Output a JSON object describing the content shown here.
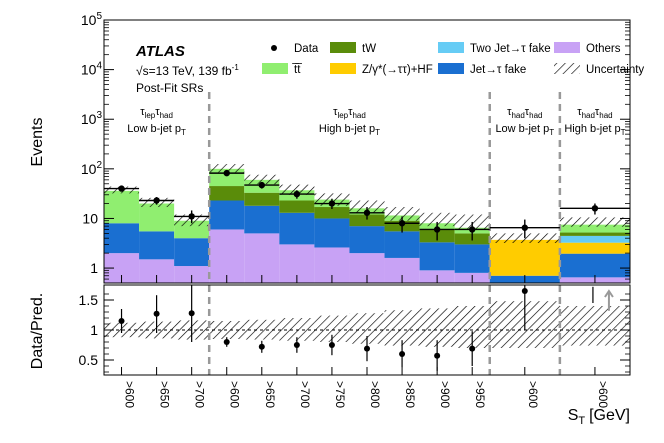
{
  "chart_data": {
    "type": "bar",
    "stacked": true,
    "log_y": true,
    "ylabel": "Events",
    "ratio_ylabel": "Data/Pred.",
    "xlabel": "S",
    "xlabel_sub": "T",
    "xlabel_unit": "[GeV]",
    "ylim": [
      0.5,
      100000
    ],
    "ratio_ylim": [
      0.25,
      1.75
    ],
    "y_ticks": [
      {
        "base": "1",
        "exp": ""
      },
      {
        "base": "10",
        "exp": ""
      },
      {
        "base": "10",
        "exp": "2"
      },
      {
        "base": "10",
        "exp": "3"
      },
      {
        "base": "10",
        "exp": "4"
      },
      {
        "base": "10",
        "exp": "5"
      }
    ],
    "y_tick_values": [
      1,
      10,
      100,
      1000,
      10000,
      100000
    ],
    "ratio_ticks": [
      {
        "value": 0.5,
        "label": "0.5"
      },
      {
        "value": 1.0,
        "label": "1"
      },
      {
        "value": 1.5,
        "label": "1.5"
      }
    ],
    "categories": [
      ">600",
      ">650",
      ">700",
      ">600",
      ">650",
      ">700",
      ">750",
      ">800",
      ">850",
      ">900",
      ">950",
      ">600",
      ">600"
    ],
    "bin_widths": [
      1,
      1,
      1,
      1,
      1,
      1,
      1,
      1,
      1,
      1,
      1,
      2,
      2
    ],
    "series": [
      {
        "name": "Others",
        "color": "#c8a2f5",
        "values": [
          2.0,
          1.5,
          1.1,
          6.0,
          5.0,
          3.0,
          2.6,
          2.0,
          1.6,
          0.9,
          0.8,
          0.0,
          0.65
        ]
      },
      {
        "name": "Jet→τ fake",
        "color": "#1a6fd1",
        "values": [
          6.0,
          4.0,
          2.9,
          17.0,
          13.0,
          10.0,
          7.4,
          5.0,
          3.9,
          2.4,
          2.2,
          0.7,
          1.3
        ]
      },
      {
        "name": "Z/γ*(→ττ)+HF",
        "color": "#ffcc00",
        "values": [
          0.0,
          0.0,
          0.0,
          0.0,
          0.0,
          0.0,
          0.0,
          0.0,
          0.0,
          0.0,
          0.0,
          3.0,
          1.3
        ]
      },
      {
        "name": "Two Jet→τ fake",
        "color": "#66ccf5",
        "values": [
          0.0,
          0.0,
          0.0,
          0.0,
          0.0,
          0.0,
          0.0,
          0.0,
          0.0,
          0.0,
          0.0,
          0.0,
          1.2
        ]
      },
      {
        "name": "tW",
        "color": "#5a8c0a",
        "values": [
          0.0,
          0.0,
          0.0,
          22.0,
          15.0,
          10.0,
          7.0,
          5.0,
          3.5,
          2.7,
          2.0,
          0.0,
          0.75
        ]
      },
      {
        "name": "t̅t̅",
        "color": "#90ee70",
        "values": [
          28.0,
          14.5,
          5.0,
          55.0,
          27.0,
          14.0,
          7.0,
          4.0,
          2.5,
          2.0,
          1.5,
          0.0,
          2.3
        ]
      }
    ],
    "uncertainty_range": [
      [
        32,
        44
      ],
      [
        17,
        26
      ],
      [
        7,
        12
      ],
      [
        85,
        125
      ],
      [
        49,
        76
      ],
      [
        30,
        48
      ],
      [
        18,
        32
      ],
      [
        13,
        23
      ],
      [
        9,
        17
      ],
      [
        7,
        13
      ],
      [
        6,
        12
      ],
      [
        3.2,
        5.0
      ],
      [
        6.8,
        10.5
      ]
    ],
    "data": [
      {
        "value": 40,
        "err": [
          36,
          44
        ]
      },
      {
        "value": 23,
        "err": [
          19,
          27
        ]
      },
      {
        "value": 11,
        "err": [
          8,
          14.5
        ]
      },
      {
        "value": 82,
        "err": [
          72,
          92
        ]
      },
      {
        "value": 47,
        "err": [
          40,
          54
        ]
      },
      {
        "value": 31,
        "err": [
          25,
          37
        ]
      },
      {
        "value": 20,
        "err": [
          15.5,
          25
        ]
      },
      {
        "value": 13,
        "err": [
          9.5,
          17
        ]
      },
      {
        "value": 8,
        "err": [
          5.2,
          11
        ]
      },
      {
        "value": 6,
        "err": [
          3.6,
          8.5
        ]
      },
      {
        "value": 6,
        "err": [
          3.6,
          8.5
        ]
      },
      {
        "value": 6.5,
        "err": [
          4.0,
          9.5
        ]
      },
      {
        "value": 16,
        "err": [
          12,
          20
        ]
      }
    ],
    "ratio": [
      {
        "value": 1.15,
        "err": [
          0.95,
          1.35
        ]
      },
      {
        "value": 1.27,
        "err": [
          0.95,
          1.58
        ]
      },
      {
        "value": 1.28,
        "err": [
          0.8,
          1.75
        ]
      },
      {
        "value": 0.8,
        "err": [
          0.72,
          0.88
        ]
      },
      {
        "value": 0.72,
        "err": [
          0.62,
          0.82
        ]
      },
      {
        "value": 0.75,
        "err": [
          0.62,
          0.88
        ]
      },
      {
        "value": 0.75,
        "err": [
          0.58,
          0.92
        ]
      },
      {
        "value": 0.69,
        "err": [
          0.48,
          0.9
        ]
      },
      {
        "value": 0.6,
        "err": [
          0.38,
          0.83
        ]
      },
      {
        "value": 0.57,
        "err": [
          0.32,
          0.83
        ]
      },
      {
        "value": 0.69,
        "err": [
          0.4,
          0.98
        ]
      },
      {
        "value": 1.65,
        "err": [
          1.0,
          1.75
        ]
      },
      {
        "value": null,
        "err": null,
        "offscale_arrow": true
      }
    ],
    "ratio_band": [
      [
        0.88,
        1.12
      ],
      [
        0.86,
        1.14
      ],
      [
        0.84,
        1.16
      ],
      [
        0.85,
        1.15
      ],
      [
        0.84,
        1.17
      ],
      [
        0.82,
        1.2
      ],
      [
        0.8,
        1.24
      ],
      [
        0.77,
        1.28
      ],
      [
        0.74,
        1.33
      ],
      [
        0.72,
        1.36
      ],
      [
        0.7,
        1.4
      ],
      [
        0.7,
        1.48
      ],
      [
        0.74,
        1.4
      ]
    ],
    "legend": [
      {
        "label": "Data",
        "kind": "marker"
      },
      {
        "label": "tW",
        "kind": "fill",
        "color": "#5a8c0a"
      },
      {
        "label": "Two Jet→τ fake",
        "kind": "fill",
        "color": "#66ccf5"
      },
      {
        "label": "Others",
        "kind": "fill",
        "color": "#c8a2f5"
      },
      {
        "label": "t̅t̅",
        "kind": "fill",
        "color": "#90ee70"
      },
      {
        "label": "Z/γ*(→ττ)+HF",
        "kind": "fill",
        "color": "#ffcc00"
      },
      {
        "label": "Jet→τ fake",
        "kind": "fill",
        "color": "#1a6fd1"
      },
      {
        "label": "Uncertainty",
        "kind": "hatch"
      }
    ],
    "annotations": {
      "experiment": "ATLAS",
      "energy_pre": "√s=13 TeV, 139 fb",
      "energy_sup": "-1",
      "region_label": "Post-Fit SRs"
    },
    "region_labels": [
      {
        "tau1": "τ",
        "sub1": "lep",
        "tau2": "τ",
        "sub2": "had",
        "line2": "Low b-jet p",
        "line2_sub": "T"
      },
      {
        "tau1": "τ",
        "sub1": "lep",
        "tau2": "τ",
        "sub2": "had",
        "line2": "High b-jet p",
        "line2_sub": "T"
      },
      {
        "tau1": "τ",
        "sub1": "had",
        "tau2": "τ",
        "sub2": "had",
        "line2": "Low b-jet p",
        "line2_sub": "T"
      },
      {
        "tau1": "τ",
        "sub1": "had",
        "tau2": "τ",
        "sub2": "had",
        "line2": "High b-jet p",
        "line2_sub": "T"
      }
    ],
    "region_boundaries_after_bin": [
      2,
      10,
      11
    ]
  }
}
